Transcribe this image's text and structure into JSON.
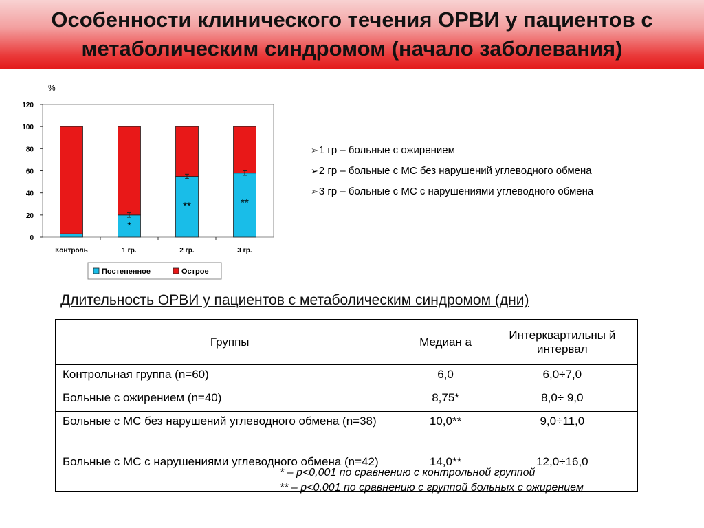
{
  "title": {
    "line1": "Особенности клинического течения ОРВИ у пациентов с",
    "line2": "метаболическим синдромом (начало заболевания)"
  },
  "chart_data": {
    "type": "bar",
    "stacked": true,
    "ylabel": "%",
    "ylim": [
      0,
      120
    ],
    "yticks": [
      "0",
      "20",
      "40",
      "60",
      "80",
      "100",
      "120"
    ],
    "categories": [
      "Контроль",
      "1 гр.",
      "2 гр.",
      "3 гр."
    ],
    "series": [
      {
        "name": "Постепенное",
        "color": "#19bde8",
        "values": [
          3,
          20,
          55,
          58
        ]
      },
      {
        "name": "Острое",
        "color": "#e81818",
        "values": [
          97,
          80,
          45,
          42
        ]
      }
    ],
    "annotations": [
      "",
      "*",
      "**",
      "**"
    ],
    "legend_position": "bottom"
  },
  "bullets": [
    "1 гр – больные с ожирением",
    "2 гр – больные с МС без нарушений углеводного обмена",
    "3 гр – больные с МС с нарушениями углеводного обмена"
  ],
  "bullet_marker": "➢",
  "table": {
    "caption": "Длительность ОРВИ у пациентов с метаболическим синдромом (дни)",
    "headers": [
      "Группы",
      "Медиан а",
      "Интерквартильны й интервал"
    ],
    "rows": [
      [
        "Контрольная группа (n=60)",
        "6,0",
        "6,0÷7,0"
      ],
      [
        "Больные с ожирением (n=40)",
        "8,75*",
        "8,0÷ 9,0"
      ],
      [
        "Больные с МС без нарушений углеводного обмена (n=38)",
        "10,0**",
        "9,0÷11,0"
      ],
      [
        "Больные с МС с нарушениями углеводного обмена (n=42)",
        "14,0**",
        "12,0÷16,0"
      ]
    ]
  },
  "footnotes": [
    "* – р<0,001 по сравнению с контрольной группой",
    "** – р<0,001 по сравнению с группой больных с ожирением"
  ]
}
